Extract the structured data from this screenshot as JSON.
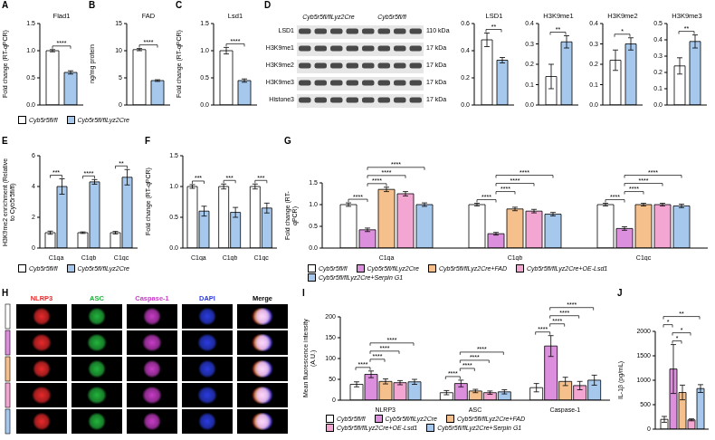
{
  "chart_data": [
    {
      "panel": "A",
      "type": "bar",
      "title": "Flad1",
      "y_label": "Fold change (RT-qPCR)",
      "categories": [
        null
      ],
      "series": [
        {
          "name": "Cyb5r5fl/fl",
          "color": "#ffffff",
          "values": [
            1.0
          ],
          "errors": [
            0.02
          ]
        },
        {
          "name": "Cyb5r5fl/flLyz2Cre",
          "color": "#a6c8ec",
          "values": [
            0.6
          ],
          "errors": [
            0.03
          ]
        }
      ],
      "ylim": [
        0,
        1.5
      ],
      "yticks": [
        {
          "value": 0,
          "label": "0.0"
        },
        0.5,
        {
          "value": 1,
          "label": "1.0"
        },
        1.5
      ],
      "significance": [
        {
          "category": 0,
          "groups": [
            0,
            1
          ],
          "label": "****"
        }
      ]
    },
    {
      "panel": "B",
      "type": "bar",
      "title": "FAD",
      "y_label": "ng/mg protein",
      "categories": [
        null
      ],
      "series": [
        {
          "name": "Cyb5r5fl/fl",
          "color": "#ffffff",
          "values": [
            10.2
          ],
          "errors": [
            0.2
          ]
        },
        {
          "name": "Cyb5r5fl/flLyz2Cre",
          "color": "#a6c8ec",
          "values": [
            4.5
          ],
          "errors": [
            0.15
          ]
        }
      ],
      "ylim": [
        0,
        15
      ],
      "yticks": [
        0,
        5,
        10,
        15
      ],
      "legend": "bottom",
      "significance": [
        {
          "category": 0,
          "groups": [
            0,
            1
          ],
          "label": "****"
        }
      ]
    },
    {
      "panel": "C",
      "type": "bar",
      "title": "Lsd1",
      "y_label": "Fold change (RT-qPCR)",
      "categories": [
        null
      ],
      "series": [
        {
          "name": "Cyb5r5fl/fl",
          "color": "#ffffff",
          "values": [
            1.0
          ],
          "errors": [
            0.06
          ]
        },
        {
          "name": "Cyb5r5fl/flLyz2Cre",
          "color": "#a6c8ec",
          "values": [
            0.45
          ],
          "errors": [
            0.03
          ]
        }
      ],
      "ylim": [
        0,
        1.5
      ],
      "yticks": [
        {
          "value": 0,
          "label": "0.0"
        },
        0.5,
        {
          "value": 1,
          "label": "1.0"
        },
        1.5
      ],
      "significance": [
        {
          "category": 0,
          "groups": [
            0,
            1
          ],
          "label": "****"
        }
      ]
    },
    {
      "type": "bar",
      "title": "LSD1",
      "categories": [
        null
      ],
      "series": [
        {
          "name": "Cyb5r5fl/fl",
          "color": "#ffffff",
          "values": [
            0.48
          ],
          "errors": [
            0.05
          ]
        },
        {
          "name": "Cyb5r5fl/flLyz2Cre",
          "color": "#a6c8ec",
          "values": [
            0.33
          ],
          "errors": [
            0.02
          ]
        }
      ],
      "ylim": [
        0,
        0.6
      ],
      "yticks": [
        {
          "value": 0,
          "label": "0.0"
        },
        0.2,
        0.4,
        0.6
      ],
      "significance": [
        {
          "category": 0,
          "groups": [
            0,
            1
          ],
          "label": "**"
        }
      ]
    },
    {
      "type": "bar",
      "title": "H3K9me1",
      "categories": [
        null
      ],
      "series": [
        {
          "name": "Cyb5r5fl/fl",
          "color": "#ffffff",
          "values": [
            0.14
          ],
          "errors": [
            0.06
          ]
        },
        {
          "name": "Cyb5r5fl/flLyz2Cre",
          "color": "#a6c8ec",
          "values": [
            0.31
          ],
          "errors": [
            0.03
          ]
        }
      ],
      "ylim": [
        0,
        0.4
      ],
      "yticks": [
        {
          "value": 0,
          "label": "0.0"
        },
        0.1,
        0.2,
        0.3,
        0.4
      ],
      "significance": [
        {
          "category": 0,
          "groups": [
            0,
            1
          ],
          "label": "**"
        }
      ]
    },
    {
      "type": "bar",
      "title": "H3K9me2",
      "categories": [
        null
      ],
      "series": [
        {
          "name": "Cyb5r5fl/fl",
          "color": "#ffffff",
          "values": [
            0.22
          ],
          "errors": [
            0.05
          ]
        },
        {
          "name": "Cyb5r5fl/flLyz2Cre",
          "color": "#a6c8ec",
          "values": [
            0.3
          ],
          "errors": [
            0.03
          ]
        }
      ],
      "ylim": [
        0,
        0.4
      ],
      "yticks": [
        {
          "value": 0,
          "label": "0.0"
        },
        0.1,
        0.2,
        0.3,
        0.4
      ],
      "significance": [
        {
          "category": 0,
          "groups": [
            0,
            1
          ],
          "label": "*"
        }
      ]
    },
    {
      "type": "bar",
      "title": "H3K9me3",
      "categories": [
        null
      ],
      "series": [
        {
          "name": "Cyb5r5fl/fl",
          "color": "#ffffff",
          "values": [
            0.24
          ],
          "errors": [
            0.05
          ]
        },
        {
          "name": "Cyb5r5fl/flLyz2Cre",
          "color": "#a6c8ec",
          "values": [
            0.39
          ],
          "errors": [
            0.04
          ]
        }
      ],
      "ylim": [
        0,
        0.5
      ],
      "yticks": [
        {
          "value": 0,
          "label": "0.0"
        },
        0.1,
        0.2,
        0.3,
        0.4,
        0.5
      ],
      "significance": [
        {
          "category": 0,
          "groups": [
            0,
            1
          ],
          "label": "**"
        }
      ]
    },
    {
      "panel": "E",
      "type": "bar",
      "y_label": "H3K9me2 enrichment (Relative to Cyb5r5fl/fl)",
      "categories": [
        "C1qa",
        "C1qb",
        "C1qc"
      ],
      "series": [
        {
          "name": "Cyb5r5fl/fl",
          "color": "#ffffff",
          "values": [
            1,
            1,
            1
          ],
          "errors": [
            0.1,
            0.05,
            0.08
          ]
        },
        {
          "name": "Cyb5r5fl/flLyz2Cre",
          "color": "#a6c8ec",
          "values": [
            4.0,
            4.3,
            4.6
          ],
          "errors": [
            0.5,
            0.15,
            0.5
          ]
        }
      ],
      "ylim": [
        0,
        6
      ],
      "yticks": [
        0,
        2,
        4,
        6
      ],
      "legend": "bottom",
      "significance": [
        {
          "category": 0,
          "groups": [
            0,
            1
          ],
          "label": "***"
        },
        {
          "category": 1,
          "groups": [
            0,
            1
          ],
          "label": "****"
        },
        {
          "category": 2,
          "groups": [
            0,
            1
          ],
          "label": "**"
        }
      ]
    },
    {
      "panel": "F",
      "type": "bar",
      "y_label": "Fold change (RT-qPCR)",
      "categories": [
        "C1qa",
        "C1qb",
        "C1qc"
      ],
      "series": [
        {
          "name": "Cyb5r5fl/fl",
          "color": "#ffffff",
          "values": [
            1,
            1,
            1
          ],
          "errors": [
            0.03,
            0.04,
            0.04
          ]
        },
        {
          "name": "Cyb5r5fl/flLyz2Cre",
          "color": "#a6c8ec",
          "values": [
            0.6,
            0.58,
            0.65
          ],
          "errors": [
            0.08,
            0.08,
            0.08
          ]
        }
      ],
      "ylim": [
        0,
        1.5
      ],
      "yticks": [
        {
          "value": 0,
          "label": "0.0"
        },
        0.5,
        {
          "value": 1,
          "label": "1.0"
        },
        1.5
      ],
      "significance": [
        {
          "category": 0,
          "groups": [
            0,
            1
          ],
          "label": "***"
        },
        {
          "category": 1,
          "groups": [
            0,
            1
          ],
          "label": "***"
        },
        {
          "category": 2,
          "groups": [
            0,
            1
          ],
          "label": "***"
        }
      ]
    },
    {
      "panel": "G",
      "type": "bar",
      "y_label": "Fold change (RT-qPCR)",
      "categories": [
        "C1qa",
        "C1qb",
        "C1qc"
      ],
      "series": [
        {
          "name": "Cyb5r5fl/fl",
          "color": "#ffffff",
          "values": [
            1.0,
            1.0,
            1.0
          ],
          "errors": [
            0.04,
            0.03,
            0.03
          ]
        },
        {
          "name": "Cyb5r5fl/flLyz2Cre",
          "color": "#dc8fdc",
          "values": [
            0.42,
            0.33,
            0.45
          ],
          "errors": [
            0.04,
            0.03,
            0.04
          ]
        },
        {
          "name": "Cyb5r5fl/flLyz2Cre+FAD",
          "color": "#f6c08c",
          "values": [
            1.35,
            0.9,
            1.0
          ],
          "errors": [
            0.05,
            0.04,
            0.03
          ]
        },
        {
          "name": "Cyb5r5fl/flLyz2Cre+OE-Lsd1",
          "color": "#f4a6d2",
          "values": [
            1.25,
            0.85,
            1.0
          ],
          "errors": [
            0.05,
            0.04,
            0.03
          ]
        },
        {
          "name": "Cyb5r5fl/flLyz2Cre+Serpin G1",
          "color": "#a6c8ec",
          "values": [
            1.0,
            0.78,
            0.97
          ],
          "errors": [
            0.04,
            0.04,
            0.04
          ]
        }
      ],
      "ylim": [
        0,
        1.5
      ],
      "yticks": [
        {
          "value": 0,
          "label": "0.0"
        },
        0.5,
        {
          "value": 1,
          "label": "1.0"
        },
        1.5
      ],
      "legend": "bottom",
      "significance": [
        {
          "category": 0,
          "groups": [
            0,
            1
          ],
          "label": "****"
        },
        {
          "category": 0,
          "groups": [
            1,
            2
          ],
          "label": "****"
        },
        {
          "category": 0,
          "groups": [
            1,
            3
          ],
          "label": "****"
        },
        {
          "category": 0,
          "groups": [
            1,
            4
          ],
          "label": "****"
        },
        {
          "category": 1,
          "groups": [
            0,
            1
          ],
          "label": "****"
        },
        {
          "category": 1,
          "groups": [
            1,
            2
          ],
          "label": "****"
        },
        {
          "category": 1,
          "groups": [
            1,
            3
          ],
          "label": "****"
        },
        {
          "category": 1,
          "groups": [
            1,
            4
          ],
          "label": "****"
        },
        {
          "category": 2,
          "groups": [
            0,
            1
          ],
          "label": "****"
        },
        {
          "category": 2,
          "groups": [
            1,
            2
          ],
          "label": "****"
        },
        {
          "category": 2,
          "groups": [
            1,
            3
          ],
          "label": "****"
        },
        {
          "category": 2,
          "groups": [
            1,
            4
          ],
          "label": "****"
        }
      ]
    },
    {
      "panel": "I",
      "type": "bar",
      "y_label": "Mean fluorescence intensity (A.U.)",
      "categories": [
        "NLRP3",
        "ASC",
        "Caspase-1"
      ],
      "series": [
        {
          "name": "Cyb5r5fl/fl",
          "color": "#ffffff",
          "values": [
            38,
            18,
            30
          ],
          "errors": [
            6,
            5,
            10
          ]
        },
        {
          "name": "Cyb5r5fl/flLyz2Cre",
          "color": "#dc8fdc",
          "values": [
            62,
            40,
            130
          ],
          "errors": [
            8,
            8,
            25
          ]
        },
        {
          "name": "Cyb5r5fl/flLyz2Cre+FAD",
          "color": "#f6c08c",
          "values": [
            45,
            22,
            45
          ],
          "errors": [
            6,
            4,
            10
          ]
        },
        {
          "name": "Cyb5r5fl/flLyz2Cre+OE-Lsd1",
          "color": "#f4a6d2",
          "values": [
            42,
            18,
            35
          ],
          "errors": [
            5,
            4,
            10
          ]
        },
        {
          "name": "Cyb5r5fl/flLyz2Cre+Serpin G1",
          "color": "#a6c8ec",
          "values": [
            44,
            20,
            48
          ],
          "errors": [
            6,
            5,
            12
          ]
        }
      ],
      "ylim": [
        0,
        200
      ],
      "yticks": [
        0,
        50,
        100,
        150,
        200
      ],
      "legend": "bottom",
      "significance": [
        {
          "category": 0,
          "groups": [
            0,
            1
          ],
          "label": "****"
        },
        {
          "category": 0,
          "groups": [
            1,
            2
          ],
          "label": "****"
        },
        {
          "category": 0,
          "groups": [
            1,
            3
          ],
          "label": "****"
        },
        {
          "category": 0,
          "groups": [
            1,
            4
          ],
          "label": "****"
        },
        {
          "category": 1,
          "groups": [
            0,
            1
          ],
          "label": "****"
        },
        {
          "category": 1,
          "groups": [
            1,
            2
          ],
          "label": "****"
        },
        {
          "category": 1,
          "groups": [
            1,
            3
          ],
          "label": "****"
        },
        {
          "category": 1,
          "groups": [
            1,
            4
          ],
          "label": "****"
        },
        {
          "category": 2,
          "groups": [
            0,
            1
          ],
          "label": "****"
        },
        {
          "category": 2,
          "groups": [
            1,
            2
          ],
          "label": "****"
        },
        {
          "category": 2,
          "groups": [
            1,
            3
          ],
          "label": "****"
        },
        {
          "category": 2,
          "groups": [
            1,
            4
          ],
          "label": "****"
        }
      ]
    },
    {
      "panel": "J",
      "type": "bar",
      "y_label": "IL-1β (pg/mL)",
      "categories": [
        null
      ],
      "series": [
        {
          "name": "Cyb5r5fl/fl",
          "color": "#ffffff",
          "values": [
            200
          ],
          "errors": [
            60
          ]
        },
        {
          "name": "Cyb5r5fl/flLyz2Cre",
          "color": "#dc8fdc",
          "values": [
            1230
          ],
          "errors": [
            500
          ]
        },
        {
          "name": "Cyb5r5fl/flLyz2Cre+FAD",
          "color": "#f6c08c",
          "values": [
            750
          ],
          "errors": [
            150
          ]
        },
        {
          "name": "Cyb5r5fl/flLyz2Cre+OE-Lsd1",
          "color": "#f4a6d2",
          "values": [
            190
          ],
          "errors": [
            20
          ]
        },
        {
          "name": "Cyb5r5fl/flLyz2Cre+Serpin G1",
          "color": "#a6c8ec",
          "values": [
            830
          ],
          "errors": [
            80
          ]
        }
      ],
      "ylim": [
        0,
        2000
      ],
      "yticks": [
        0,
        500,
        1000,
        1500,
        2000
      ],
      "significance": [
        {
          "category": 0,
          "groups": [
            1,
            2
          ],
          "label": "*"
        },
        {
          "category": 0,
          "groups": [
            1,
            3
          ],
          "label": "*"
        },
        {
          "category": 0,
          "groups": [
            0,
            1
          ],
          "label": "*"
        },
        {
          "category": 0,
          "groups": [
            0,
            4
          ],
          "label": "**"
        }
      ]
    }
  ],
  "blot": {
    "panel": "D",
    "lanes": [
      "Cyb5r5fl/flLyz2Cre",
      "Cyb5r5fl/fl"
    ],
    "rows": [
      {
        "label": "LSD1",
        "mw": "110 kDa"
      },
      {
        "label": "H3K9me1",
        "mw": "17 kDa"
      },
      {
        "label": "H3K9me2",
        "mw": "17 kDa"
      },
      {
        "label": "H3K9me3",
        "mw": "17 kDa"
      },
      {
        "label": "Histone3",
        "mw": "17 kDa"
      }
    ]
  },
  "images": {
    "panel": "H",
    "columns": [
      {
        "label": "NLRP3",
        "color": "#e8292b"
      },
      {
        "label": "ASC",
        "color": "#22b43c"
      },
      {
        "label": "Caspase-1",
        "color": "#c83cc8"
      },
      {
        "label": "DAPI",
        "color": "#2a3ce0"
      },
      {
        "label": "Merge",
        "color": "#000000"
      }
    ],
    "colors": [
      "#ffffff",
      "#dc8fdc",
      "#f6c08c",
      "#f4a6d2",
      "#a6c8ec"
    ]
  }
}
